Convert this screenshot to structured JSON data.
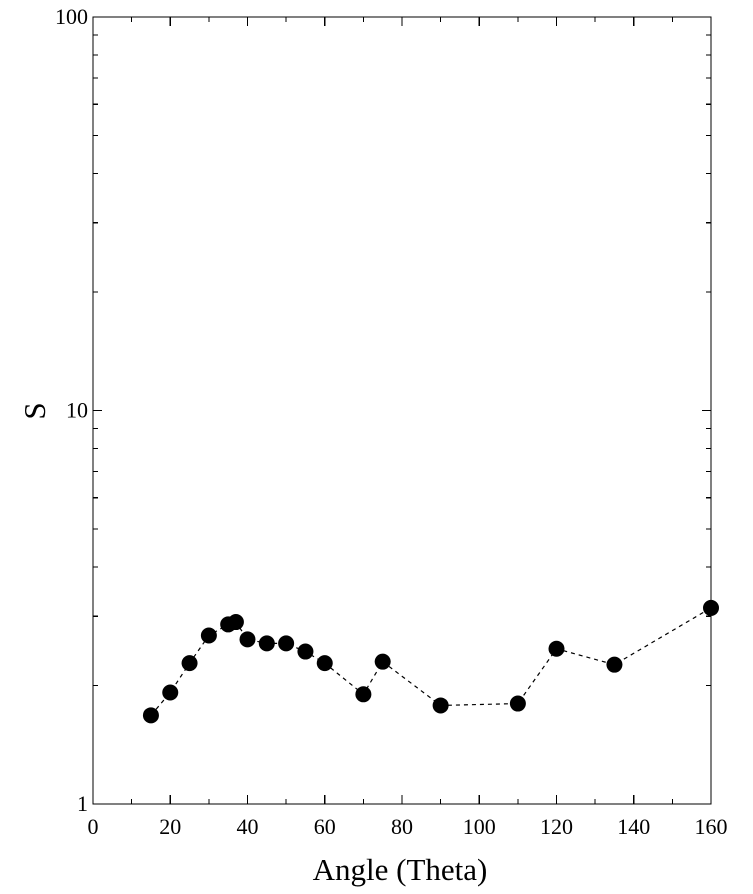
{
  "chart_data": {
    "type": "scatter",
    "title": "",
    "xlabel": "Angle (Theta)",
    "ylabel": "S",
    "xlim": [
      0,
      160
    ],
    "ylim": [
      1,
      100
    ],
    "yscale": "log",
    "x_ticks": [
      "0",
      "20",
      "40",
      "60",
      "80",
      "100",
      "120",
      "140",
      "160"
    ],
    "y_ticks": [
      "1",
      "10",
      "100"
    ],
    "grid": false,
    "legend": "none",
    "marker": "filled-circle",
    "line_style": "dashed",
    "colors": {
      "marker": "#000000",
      "line": "#000000",
      "axis": "#000000",
      "background": "#ffffff"
    },
    "series": [
      {
        "x": [
          15,
          20,
          25,
          30,
          35,
          37,
          40,
          45,
          50,
          55,
          60,
          70,
          75,
          90,
          110,
          120,
          135,
          160
        ],
        "y": [
          1.68,
          1.92,
          2.28,
          2.68,
          2.86,
          2.9,
          2.62,
          2.56,
          2.56,
          2.44,
          2.28,
          1.9,
          2.3,
          1.78,
          1.8,
          2.48,
          2.26,
          3.15
        ]
      }
    ]
  }
}
